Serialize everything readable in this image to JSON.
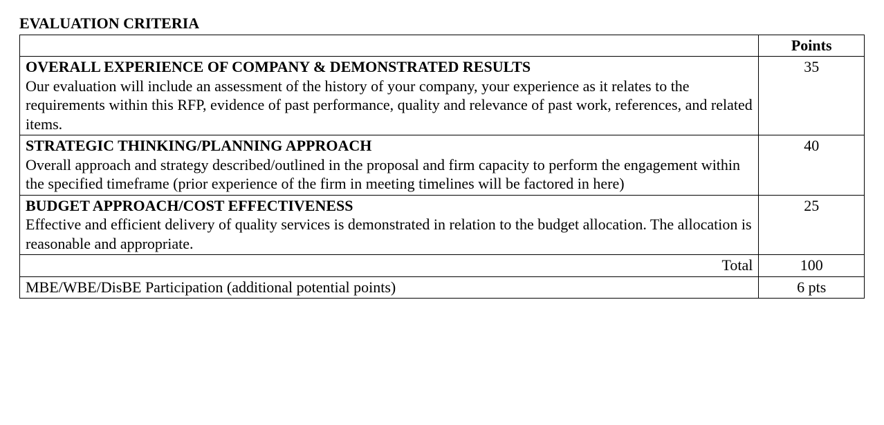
{
  "section_title": "EVALUATION CRITERIA",
  "table": {
    "points_header": "Points",
    "rows": [
      {
        "heading": "OVERALL EXPERIENCE OF COMPANY & DEMONSTRATED RESULTS",
        "body": "Our evaluation will include an assessment of the history of your company, your experience as it relates to the requirements within this RFP, evidence of past performance, quality and relevance of past work, references, and related items.",
        "points": "35"
      },
      {
        "heading": "STRATEGIC THINKING/PLANNING APPROACH",
        "body": "Overall approach and strategy described/outlined in the proposal and firm capacity to perform the engagement within the specified timeframe (prior experience of the firm in meeting timelines will be factored in here)",
        "points": "40"
      },
      {
        "heading": "BUDGET APPROACH/COST EFFECTIVENESS",
        "body": "Effective and efficient delivery of quality services is demonstrated in relation to the budget allocation.  The allocation is reasonable and appropriate.",
        "points": "25"
      }
    ],
    "total_label": "Total",
    "total_points": "100",
    "extra_row": {
      "label": "MBE/WBE/DisBE Participation (additional potential points)",
      "points": "6 pts"
    }
  }
}
